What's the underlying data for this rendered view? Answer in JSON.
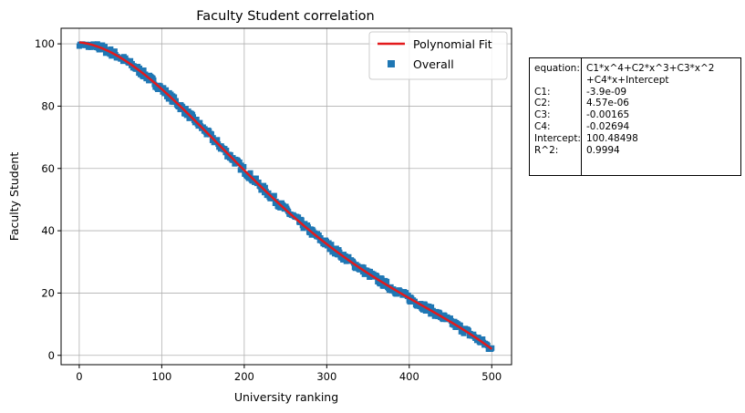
{
  "chart_data": {
    "type": "scatter",
    "title": "Faculty Student correlation",
    "xlabel": "University ranking",
    "ylabel": "Faculty Student",
    "xlim": [
      -22,
      524
    ],
    "ylim": [
      -3,
      105
    ],
    "xticks": [
      0,
      100,
      200,
      300,
      400,
      500
    ],
    "yticks": [
      0,
      20,
      40,
      60,
      80,
      100
    ],
    "grid": true,
    "legend_position": "top-right",
    "series": [
      {
        "name": "Overall",
        "kind": "scatter",
        "color": "#1f77b4",
        "marker": "square",
        "x_range": [
          0,
          500
        ],
        "point_count": 500,
        "model": "fit_curve_with_small_noise"
      },
      {
        "name": "Polynomial Fit",
        "kind": "line",
        "color": "#e31a1c",
        "x_range": [
          0,
          500
        ],
        "coefficients": {
          "C1": -3.9e-09,
          "C2": 4.57e-06,
          "C3": -0.00165,
          "C4": -0.02694,
          "Intercept": 100.48498
        }
      }
    ]
  },
  "table": {
    "rows": [
      {
        "key": "equation:",
        "value": "C1*x^4+C2*x^3+C3*x^2"
      },
      {
        "key": "",
        "value": "+C4*x+Intercept"
      },
      {
        "key": "C1:",
        "value": "-3.9e-09"
      },
      {
        "key": "C2:",
        "value": "4.57e-06"
      },
      {
        "key": "C3:",
        "value": "-0.00165"
      },
      {
        "key": "C4:",
        "value": "-0.02694"
      },
      {
        "key": "Intercept:",
        "value": "100.48498"
      },
      {
        "key": "R^2:",
        "value": "0.9994"
      }
    ]
  }
}
